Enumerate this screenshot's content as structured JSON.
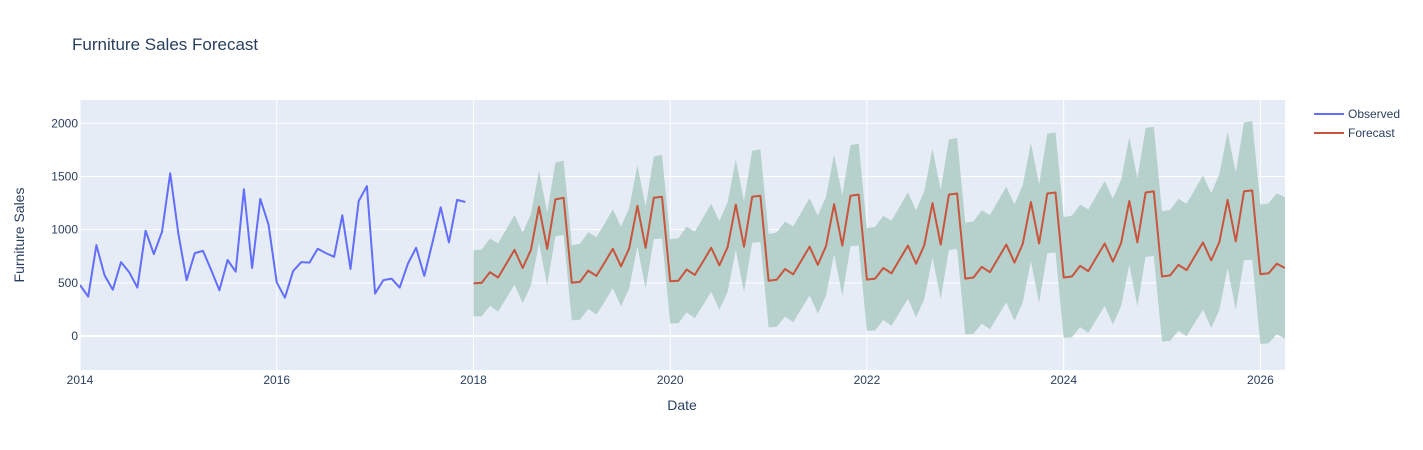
{
  "chart_data": {
    "type": "line",
    "title": "Furniture Sales Forecast",
    "xlabel": "Date",
    "ylabel": "Furniture Sales",
    "xlim": [
      2014.0,
      2026.25
    ],
    "ylim": [
      -320,
      2220
    ],
    "x_ticks": [
      {
        "value": 2014,
        "label": "2014"
      },
      {
        "value": 2016,
        "label": "2016"
      },
      {
        "value": 2018,
        "label": "2018"
      },
      {
        "value": 2020,
        "label": "2020"
      },
      {
        "value": 2022,
        "label": "2022"
      },
      {
        "value": 2024,
        "label": "2024"
      },
      {
        "value": 2026,
        "label": "2026"
      }
    ],
    "y_ticks": [
      {
        "value": 0,
        "label": "0"
      },
      {
        "value": 500,
        "label": "500"
      },
      {
        "value": 1000,
        "label": "1000"
      },
      {
        "value": 1500,
        "label": "1500"
      },
      {
        "value": 2000,
        "label": "2000"
      }
    ],
    "grid": true,
    "legend_position": "top-right",
    "colors": {
      "observed": "#636efa",
      "forecast": "#c8553d",
      "band": "#aecbc4",
      "plot_bg": "#e5ecf6",
      "grid": "#ffffff"
    },
    "observed": {
      "name": "Observed",
      "start": "2014-01",
      "values": [
        480,
        370,
        855,
        570,
        435,
        695,
        600,
        455,
        990,
        770,
        980,
        1530,
        960,
        525,
        780,
        800,
        620,
        430,
        715,
        605,
        1380,
        640,
        1290,
        1050,
        505,
        360,
        610,
        695,
        690,
        820,
        780,
        745,
        1135,
        630,
        1270,
        1410,
        400,
        525,
        540,
        455,
        680,
        830,
        565,
        880,
        1210,
        880,
        1280,
        1260
      ]
    },
    "forecast": {
      "name": "Forecast",
      "start": "2018-01",
      "values": [
        495,
        500,
        600,
        550,
        680,
        810,
        640,
        810,
        1215,
        820,
        1285,
        1300,
        500,
        510,
        615,
        565,
        690,
        820,
        655,
        825,
        1225,
        830,
        1300,
        1310,
        515,
        520,
        625,
        575,
        700,
        830,
        665,
        835,
        1235,
        840,
        1310,
        1320,
        520,
        530,
        630,
        580,
        710,
        840,
        670,
        845,
        1240,
        850,
        1320,
        1330,
        530,
        540,
        640,
        590,
        720,
        850,
        680,
        855,
        1250,
        860,
        1330,
        1340,
        540,
        550,
        650,
        600,
        730,
        860,
        690,
        865,
        1260,
        870,
        1340,
        1350,
        550,
        560,
        660,
        610,
        740,
        870,
        700,
        875,
        1270,
        880,
        1350,
        1360,
        560,
        570,
        670,
        620,
        750,
        880,
        710,
        885,
        1280,
        890,
        1360,
        1370,
        580,
        590,
        680,
        640
      ]
    }
  },
  "legend": {
    "observed_label": "Observed",
    "forecast_label": "Forecast"
  }
}
